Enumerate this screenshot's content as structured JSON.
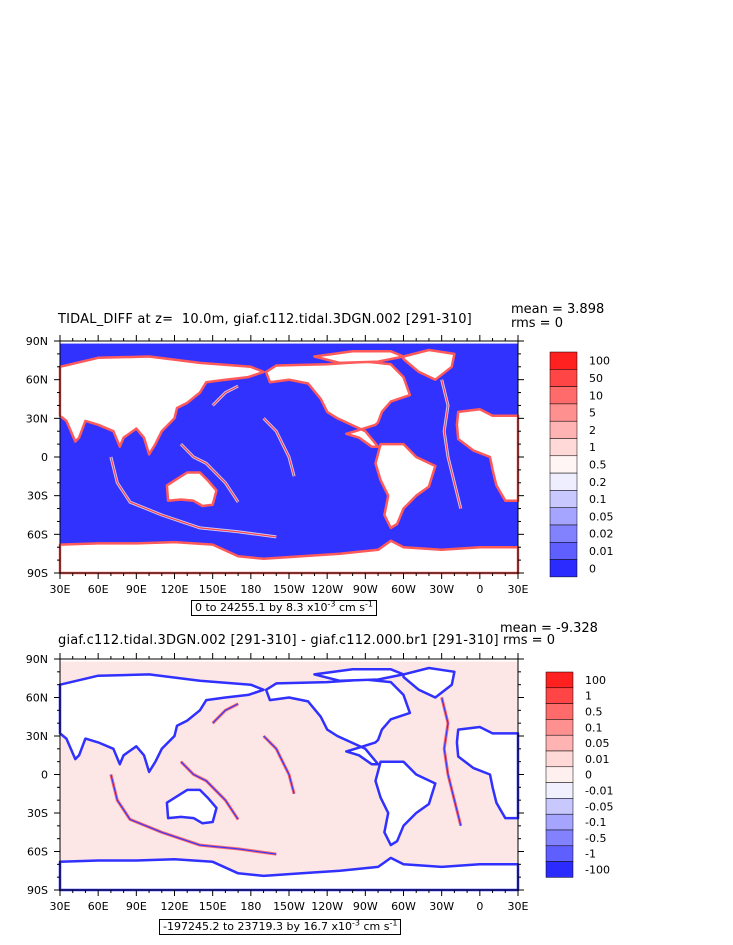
{
  "chart_data": [
    {
      "type": "heatmap",
      "title": "TIDAL_DIFF at z=  10.0m, giaf.c112.tidal.3DGN.002 [291-310]",
      "stats": {
        "mean": "mean = 3.898",
        "rms": "rms = 0"
      },
      "range_note": {
        "text": "0 to 24255.1 by 8.3 x10",
        "exp": "-3",
        "units": " cm s",
        "units_exp": "-1"
      },
      "x_ticks": [
        "30E",
        "60E",
        "90E",
        "120E",
        "150E",
        "180",
        "150W",
        "120W",
        "90W",
        "60W",
        "30W",
        "0",
        "30E"
      ],
      "y_ticks": [
        "90N",
        "60N",
        "30N",
        "0",
        "30S",
        "60S",
        "90S"
      ],
      "legend": {
        "labels": [
          "100",
          "50",
          "10",
          "5",
          "2",
          "1",
          "0.5",
          "0.2",
          "0.1",
          "0.05",
          "0.02",
          "0.01",
          "0"
        ],
        "colors": [
          "#ff2020",
          "#ff4545",
          "#ff6a6a",
          "#ff9090",
          "#ffb3b3",
          "#ffd8d8",
          "#fff5f5",
          "#eeeeff",
          "#c8c8ff",
          "#a5a5ff",
          "#8282ff",
          "#5f5fff",
          "#2b2bff"
        ]
      }
    },
    {
      "type": "heatmap",
      "title": "giaf.c112.tidal.3DGN.002 [291-310] - giaf.c112.000.br1 [291-310]",
      "stats": {
        "mean": "mean = -9.328",
        "rms": "rms = 0"
      },
      "range_note": {
        "text": "-197245.2 to 23719.3 by 16.7 x10",
        "exp": "-3",
        "units": " cm s",
        "units_exp": "-1"
      },
      "x_ticks": [
        "30E",
        "60E",
        "90E",
        "120E",
        "150E",
        "180",
        "150W",
        "120W",
        "90W",
        "60W",
        "30W",
        "0",
        "30E"
      ],
      "y_ticks": [
        "90N",
        "60N",
        "30N",
        "0",
        "30S",
        "60S",
        "90S"
      ],
      "legend": {
        "labels": [
          "100",
          "1",
          "0.5",
          "0.1",
          "0.05",
          "0.01",
          "0",
          "-0.01",
          "-0.05",
          "-0.1",
          "-0.5",
          "-1",
          "-100"
        ],
        "colors": [
          "#ff2020",
          "#ff4545",
          "#ff6a6a",
          "#ff9090",
          "#ffb3b3",
          "#ffd8d8",
          "#fff0f0",
          "#f0f0ff",
          "#c8c8ff",
          "#a5a5ff",
          "#8282ff",
          "#5f5fff",
          "#2b2bff"
        ]
      }
    }
  ],
  "colors": {
    "land": "#ffffff",
    "ocean_top": "#3030ff",
    "ocean_bottom": "#fde5e5",
    "hot": "#ff3030",
    "light": "#e6e6ff"
  }
}
